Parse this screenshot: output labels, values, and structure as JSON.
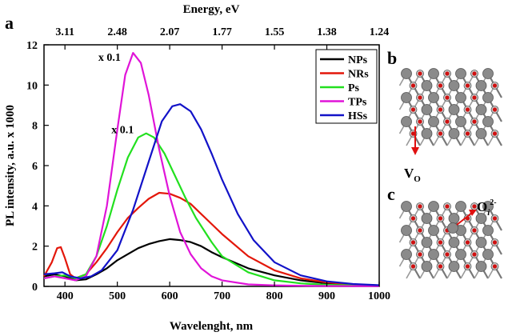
{
  "panels": {
    "a": "a",
    "b": "b",
    "c": "c",
    "b_label_main": "V",
    "b_label_sub": "O",
    "c_label_main": "O",
    "c_label_sub": "i",
    "c_label_sup": "2-"
  },
  "colors": {
    "NPs": "#000000",
    "NRs": "#e3170a",
    "Ps": "#22e01f",
    "TPs": "#e014d8",
    "HSs": "#1212c8",
    "atom_gray": "#8a8a8a",
    "atom_red": "#d01010",
    "arrow": "#e01010"
  },
  "chart_data": {
    "type": "line",
    "xlabel": "Wavelenght, nm",
    "ylabel": "PL intensity, a.u. x 1000",
    "top_axis_label": "Energy, eV",
    "xlim": [
      360,
      1000
    ],
    "ylim": [
      0,
      12
    ],
    "x_ticks": [
      400,
      500,
      600,
      700,
      800,
      900,
      1000
    ],
    "y_ticks": [
      0,
      2,
      4,
      6,
      8,
      10,
      12
    ],
    "top_ticks": [
      {
        "label": "3.11",
        "wavelength": 400
      },
      {
        "label": "2.48",
        "wavelength": 500
      },
      {
        "label": "2.07",
        "wavelength": 600
      },
      {
        "label": "1.77",
        "wavelength": 700
      },
      {
        "label": "1.55",
        "wavelength": 800
      },
      {
        "label": "1.38",
        "wavelength": 900
      },
      {
        "label": "1.24",
        "wavelength": 1000
      }
    ],
    "legend_position": "top-right",
    "annotations": [
      {
        "text": "x 0.1",
        "x": 485,
        "y": 11.2
      },
      {
        "text": "x 0.1",
        "x": 510,
        "y": 7.6
      }
    ],
    "series": [
      {
        "name": "NPs",
        "x": [
          360,
          380,
          400,
          420,
          440,
          460,
          480,
          500,
          520,
          540,
          560,
          580,
          600,
          620,
          640,
          660,
          680,
          700,
          750,
          800,
          850,
          900,
          950,
          1000
        ],
        "values": [
          0.5,
          0.6,
          0.5,
          0.3,
          0.35,
          0.6,
          0.9,
          1.3,
          1.6,
          1.9,
          2.1,
          2.25,
          2.35,
          2.3,
          2.2,
          2.0,
          1.7,
          1.45,
          0.9,
          0.55,
          0.3,
          0.15,
          0.08,
          0.05
        ]
      },
      {
        "name": "NRs",
        "x": [
          360,
          375,
          385,
          392,
          400,
          410,
          420,
          440,
          460,
          480,
          500,
          520,
          540,
          560,
          580,
          600,
          620,
          640,
          660,
          680,
          700,
          750,
          800,
          850,
          900,
          950,
          1000
        ],
        "values": [
          0.5,
          1.2,
          1.9,
          1.95,
          1.4,
          0.6,
          0.4,
          0.6,
          1.2,
          1.9,
          2.7,
          3.4,
          3.9,
          4.35,
          4.65,
          4.6,
          4.4,
          4.1,
          3.6,
          3.1,
          2.6,
          1.5,
          0.8,
          0.4,
          0.2,
          0.1,
          0.05
        ]
      },
      {
        "name": "Ps",
        "x": [
          360,
          380,
          400,
          420,
          440,
          460,
          480,
          500,
          520,
          540,
          555,
          570,
          590,
          610,
          630,
          650,
          680,
          700,
          750,
          800,
          850,
          900,
          950,
          1000
        ],
        "values": [
          0.4,
          0.5,
          0.55,
          0.4,
          0.6,
          1.5,
          3.0,
          4.8,
          6.4,
          7.4,
          7.6,
          7.4,
          6.6,
          5.5,
          4.4,
          3.4,
          2.2,
          1.5,
          0.7,
          0.3,
          0.15,
          0.08,
          0.05,
          0.03
        ]
      },
      {
        "name": "TPs",
        "x": [
          360,
          380,
          400,
          420,
          440,
          460,
          480,
          500,
          515,
          530,
          545,
          560,
          580,
          600,
          620,
          640,
          660,
          680,
          700,
          750,
          800,
          850,
          900,
          1000
        ],
        "values": [
          0.4,
          0.5,
          0.4,
          0.3,
          0.5,
          1.5,
          4.0,
          7.8,
          10.5,
          11.6,
          11.1,
          9.5,
          6.8,
          4.5,
          2.7,
          1.6,
          0.9,
          0.5,
          0.3,
          0.1,
          0.05,
          0.03,
          0.02,
          0.01
        ]
      },
      {
        "name": "HSs",
        "x": [
          360,
          380,
          395,
          410,
          430,
          450,
          470,
          500,
          530,
          560,
          585,
          605,
          620,
          640,
          660,
          680,
          700,
          730,
          760,
          800,
          850,
          900,
          950,
          1000
        ],
        "values": [
          0.6,
          0.65,
          0.7,
          0.5,
          0.4,
          0.5,
          0.8,
          1.8,
          3.8,
          6.2,
          8.2,
          8.95,
          9.05,
          8.7,
          7.8,
          6.6,
          5.3,
          3.6,
          2.3,
          1.2,
          0.55,
          0.25,
          0.12,
          0.06
        ]
      }
    ]
  }
}
